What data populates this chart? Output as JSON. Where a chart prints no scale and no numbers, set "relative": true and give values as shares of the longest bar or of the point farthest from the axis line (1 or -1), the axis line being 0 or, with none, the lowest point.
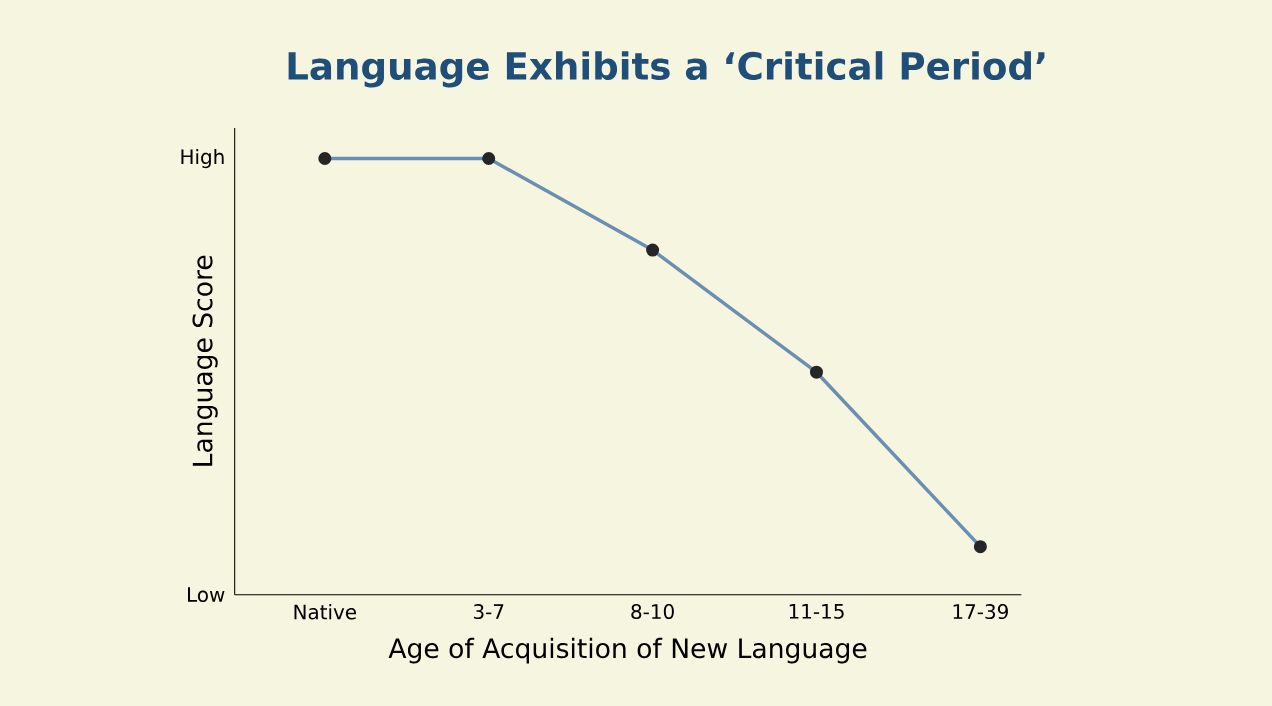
{
  "chart_data": {
    "type": "line",
    "title": "Language Exhibits a ‘Critical Period’",
    "xlabel": "Age of Acquisition of New Language",
    "ylabel": "Language Score",
    "categories": [
      "Native",
      "3-7",
      "8-10",
      "11-15",
      "17-39"
    ],
    "series": [
      {
        "color": "#6b8fb3",
        "values": [
          1,
          1,
          0.79,
          0.51,
          0.11
        ]
      }
    ],
    "relative": true,
    "annotations": [
      "High",
      "Low"
    ],
    "marker": "circle",
    "line_style": "solid"
  }
}
